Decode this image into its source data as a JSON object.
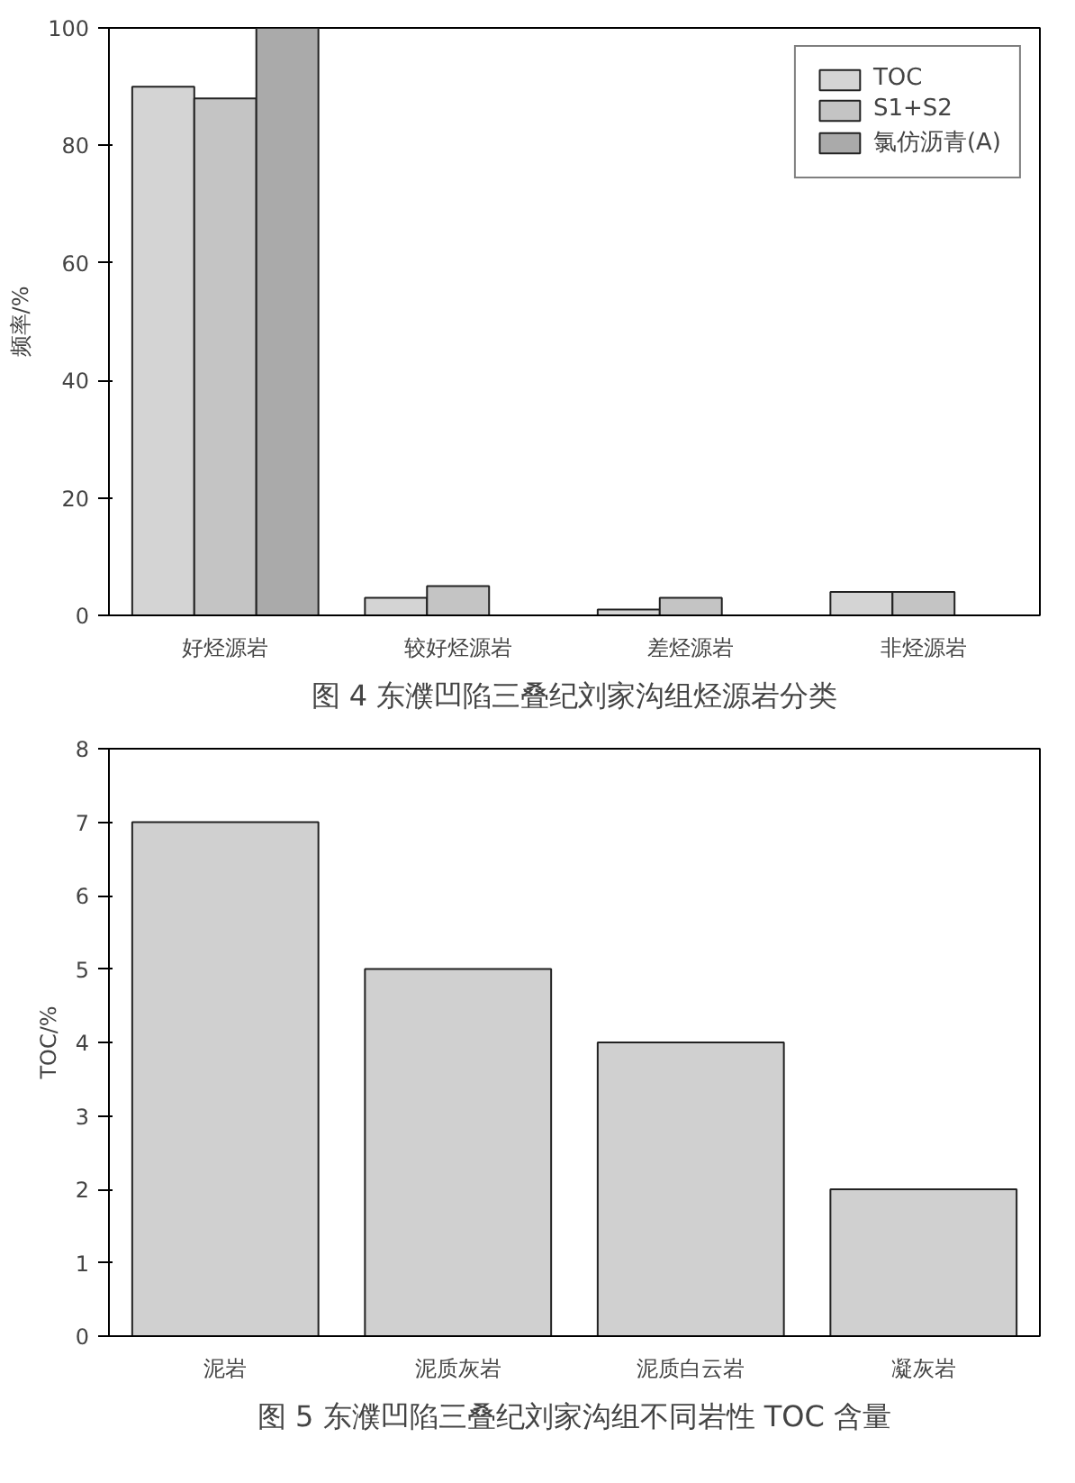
{
  "chart_data": [
    {
      "type": "bar",
      "categories": [
        "好烃源岩",
        "较好烃源岩",
        "差烃源岩",
        "非烃源岩"
      ],
      "ylabel": "频率/%",
      "ylim": [
        0,
        100
      ],
      "yticks": [
        0,
        20,
        40,
        60,
        80,
        100
      ],
      "legend": "top right",
      "grid": false,
      "series": [
        {
          "name": "TOC",
          "color": "#d4d4d4",
          "values": [
            90,
            3,
            1,
            4
          ]
        },
        {
          "name": "S1+S2",
          "color": "#c4c4c4",
          "values": [
            88,
            5,
            3,
            4
          ]
        },
        {
          "name": "氯仿沥青(A)",
          "color": "#aaaaaa",
          "values": [
            100,
            null,
            null,
            null
          ]
        }
      ],
      "annotations": [
        "图 4 东濮凹陷三叠纪刘家沟组烃源岩分类"
      ]
    },
    {
      "type": "bar",
      "categories": [
        "泥岩",
        "泥质灰岩",
        "泥质白云岩",
        "凝灰岩"
      ],
      "ylabel": "TOC/%",
      "ylim": [
        0,
        8
      ],
      "yticks": [
        0,
        1,
        2,
        3,
        4,
        5,
        6,
        7,
        8
      ],
      "grid": false,
      "series": [
        {
          "color": "#d0d0d0",
          "values": [
            7,
            5,
            4,
            2
          ]
        }
      ],
      "annotations": [
        "图 5 东濮凹陷三叠纪刘家沟组不同岩性 TOC 含量"
      ]
    }
  ]
}
